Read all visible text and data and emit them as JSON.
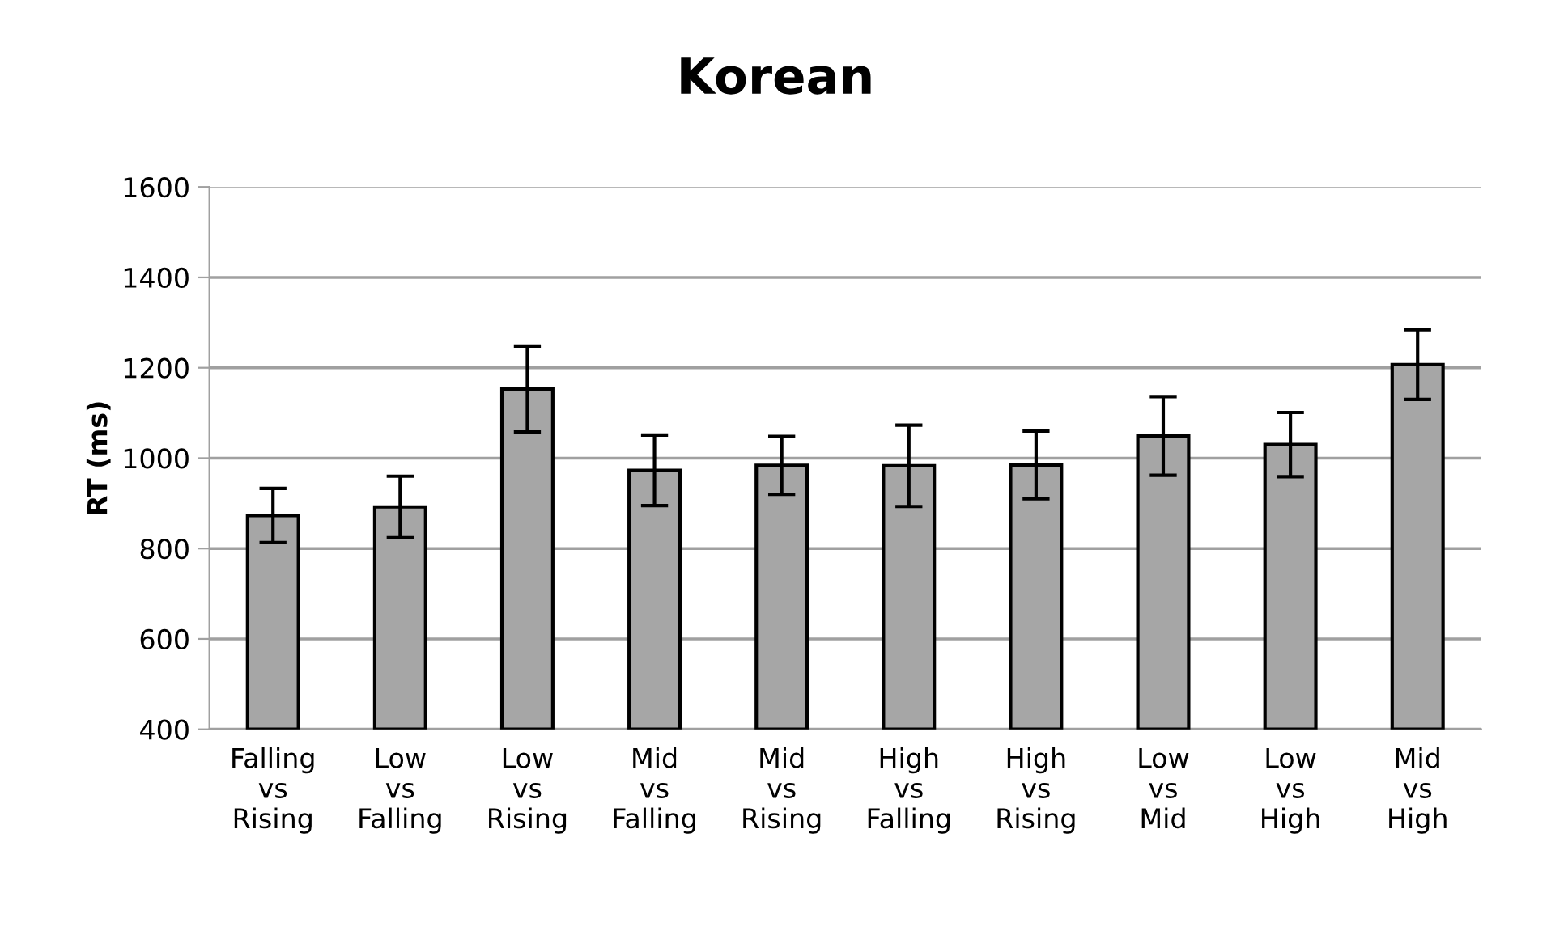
{
  "chart_data": {
    "type": "bar",
    "title": "Korean",
    "ylabel": "RT (ms)",
    "categories": [
      "Falling\nvs\nRising",
      "Low\nvs\nFalling",
      "Low\nvs\nRising",
      "Mid\nvs\nFalling",
      "Mid\nvs\nRising",
      "High\nvs\nFalling",
      "High\nvs\nRising",
      "Low\nvs\nMid",
      "Low\nvs\nHigh",
      "Mid\nvs\nHigh"
    ],
    "values": [
      873,
      892,
      1153,
      973,
      984,
      983,
      985,
      1049,
      1030,
      1207
    ],
    "errors": [
      60,
      68,
      95,
      78,
      64,
      90,
      75,
      87,
      71,
      77
    ],
    "color": "#a6a6a6",
    "ylim": [
      400,
      1600
    ],
    "yticks": [
      400,
      600,
      800,
      1000,
      1200,
      1400,
      1600
    ],
    "grid": "y"
  }
}
